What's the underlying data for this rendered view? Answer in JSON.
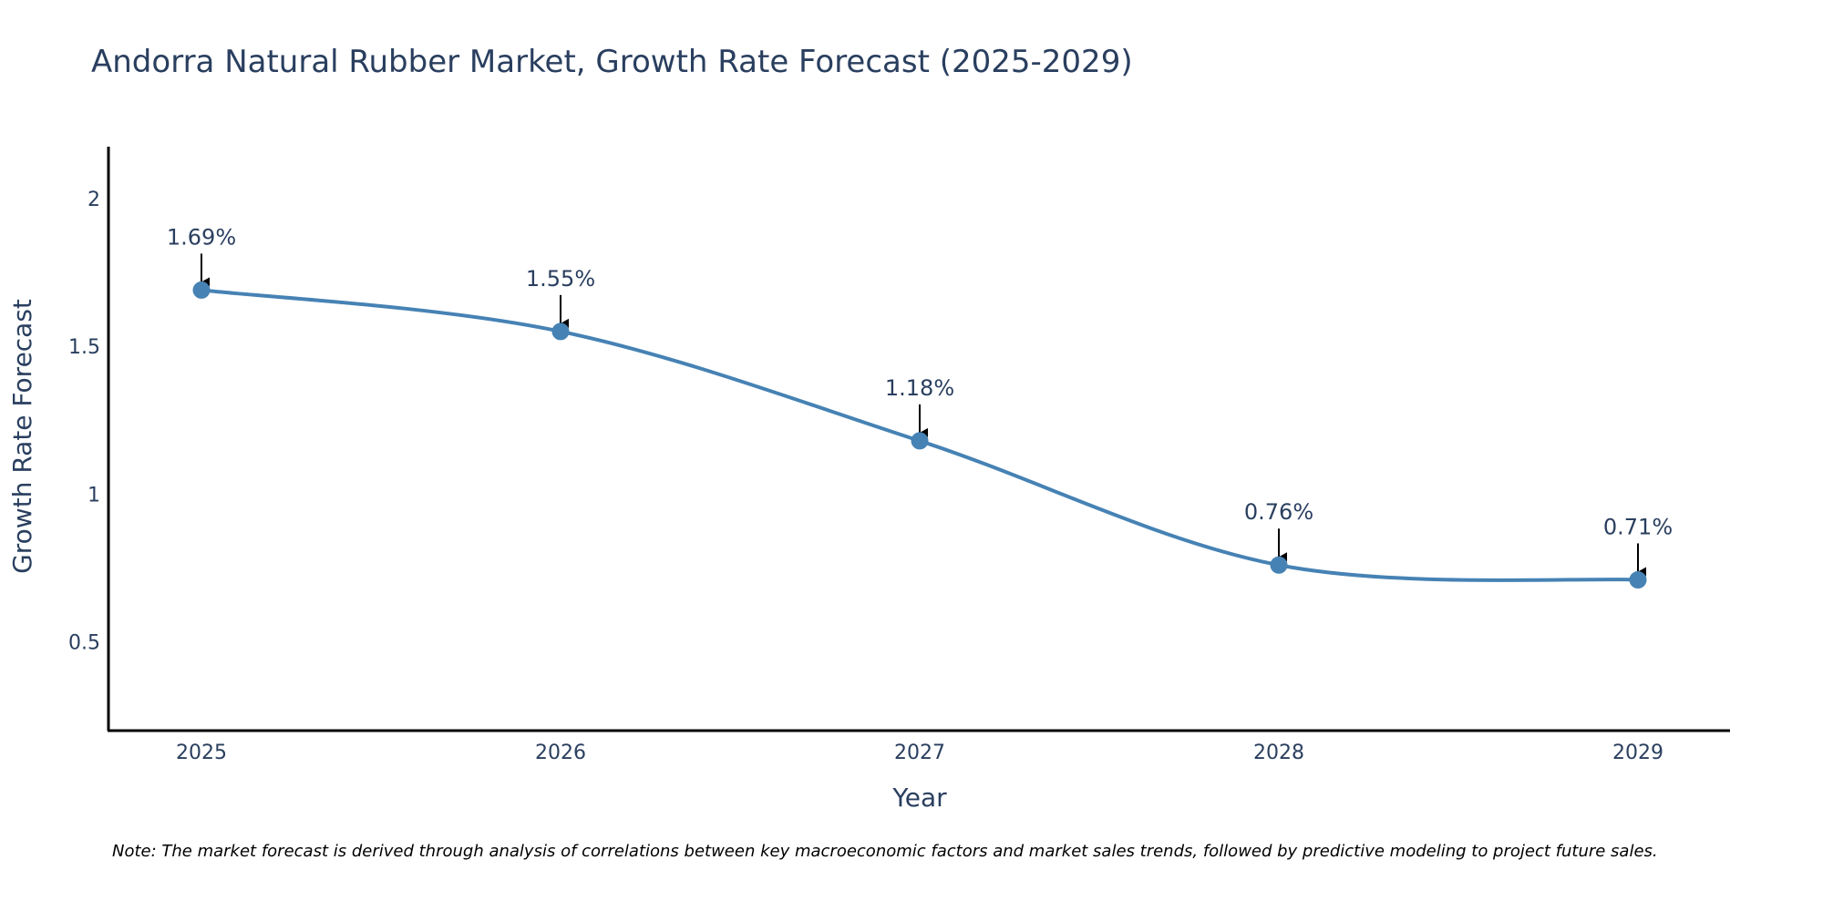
{
  "chart_data": {
    "type": "line",
    "title": "Andorra Natural Rubber Market, Growth Rate Forecast (2025-2029)",
    "xlabel": "Year",
    "ylabel": "Growth Rate Forecast",
    "categories": [
      "2025",
      "2026",
      "2027",
      "2028",
      "2029"
    ],
    "series": [
      {
        "name": "Growth Rate Forecast",
        "values": [
          1.69,
          1.55,
          1.18,
          0.76,
          0.71
        ]
      }
    ],
    "data_labels": [
      "1.69%",
      "1.55%",
      "1.18%",
      "0.76%",
      "0.71%"
    ],
    "ylim": [
      0.2,
      2.175
    ],
    "yticks": [
      0.5,
      1,
      1.5,
      2
    ],
    "ytick_labels": [
      "0.5",
      "1",
      "1.5",
      "2"
    ],
    "grid": false,
    "line_color": "#4682b4",
    "marker_color": "#4682b4",
    "note": "Note: The market forecast is derived through analysis of correlations between key macroeconomic factors and market sales trends, followed by predictive modeling to project future sales."
  }
}
